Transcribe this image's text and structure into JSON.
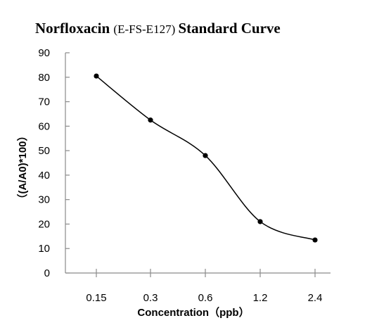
{
  "chart_data": {
    "type": "line",
    "title_parts": [
      {
        "text": "Norfloxacin ",
        "style": "bold"
      },
      {
        "text": "(E-FS-E127) ",
        "style": "normal"
      },
      {
        "text": "Standard Curve",
        "style": "bold"
      }
    ],
    "xlabel": "Concentration（ppb）",
    "ylabel": "（(A/A0)*100）",
    "categories": [
      "0.15",
      "0.3",
      "0.6",
      "1.2",
      "2.4"
    ],
    "series": [
      {
        "values": [
          80.5,
          62.5,
          48,
          21,
          13.5
        ]
      }
    ],
    "ylim": [
      0,
      90
    ],
    "yticks": [
      0,
      10,
      20,
      30,
      40,
      50,
      60,
      70,
      80,
      90
    ],
    "grid": false,
    "legend": "none"
  }
}
